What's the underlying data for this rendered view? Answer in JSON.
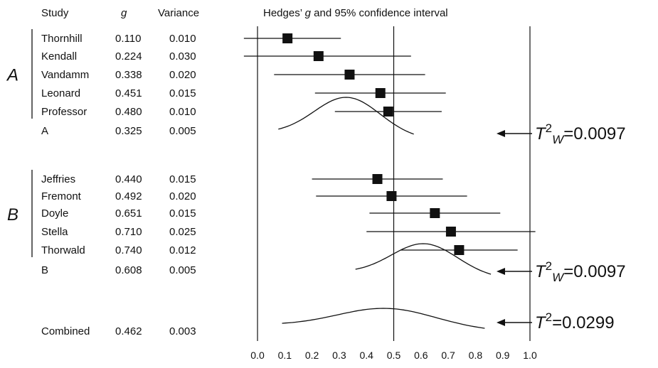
{
  "columns": {
    "study": "Study",
    "g": "g",
    "variance": "Variance",
    "plot_pre": "Hedges’ ",
    "plot_g": "g",
    "plot_post": " and 95% confidence interval"
  },
  "groups": [
    {
      "label": "A",
      "studies": [
        {
          "name": "Thornhill",
          "g": "0.110",
          "var": "0.010"
        },
        {
          "name": "Kendall",
          "g": "0.224",
          "var": "0.030"
        },
        {
          "name": "Vandamm",
          "g": "0.338",
          "var": "0.020"
        },
        {
          "name": "Leonard",
          "g": "0.451",
          "var": "0.015"
        },
        {
          "name": "Professor",
          "g": "0.480",
          "var": "0.010"
        }
      ],
      "summary": {
        "name": "A",
        "g": "0.325",
        "var": "0.005"
      },
      "annotation": {
        "base": "T",
        "sup": "2",
        "sub": "W",
        "eq": "=",
        "value": "0.0097"
      }
    },
    {
      "label": "B",
      "studies": [
        {
          "name": "Jeffries",
          "g": "0.440",
          "var": "0.015"
        },
        {
          "name": "Fremont",
          "g": "0.492",
          "var": "0.020"
        },
        {
          "name": "Doyle",
          "g": "0.651",
          "var": "0.015"
        },
        {
          "name": "Stella",
          "g": "0.710",
          "var": "0.025"
        },
        {
          "name": "Thorwald",
          "g": "0.740",
          "var": "0.012"
        }
      ],
      "summary": {
        "name": "B",
        "g": "0.608",
        "var": "0.005"
      },
      "annotation": {
        "base": "T",
        "sup": "2",
        "sub": "W",
        "eq": "=",
        "value": "0.0097"
      }
    }
  ],
  "combined": {
    "name": "Combined",
    "g": "0.462",
    "var": "0.003",
    "annotation": {
      "base": "T",
      "sup": "2",
      "sub": "",
      "eq": "=",
      "value": "0.0299"
    }
  },
  "chart_data": {
    "type": "scatter",
    "subtype": "forest-plot",
    "xlim": [
      0.0,
      1.0
    ],
    "xticks": [
      "0.0",
      "0.1",
      "0.2",
      "0.3",
      "0.4",
      "0.5",
      "0.6",
      "0.7",
      "0.8",
      "0.9",
      "1.0"
    ],
    "reference_lines": [
      0.0,
      0.5,
      1.0
    ],
    "grid": false,
    "studies": [
      {
        "name": "Thornhill",
        "group": "A",
        "g": 0.11,
        "variance": 0.01
      },
      {
        "name": "Kendall",
        "group": "A",
        "g": 0.224,
        "variance": 0.03
      },
      {
        "name": "Vandamm",
        "group": "A",
        "g": 0.338,
        "variance": 0.02
      },
      {
        "name": "Leonard",
        "group": "A",
        "g": 0.451,
        "variance": 0.015
      },
      {
        "name": "Professor",
        "group": "A",
        "g": 0.48,
        "variance": 0.01
      },
      {
        "name": "Jeffries",
        "group": "B",
        "g": 0.44,
        "variance": 0.015
      },
      {
        "name": "Fremont",
        "group": "B",
        "g": 0.492,
        "variance": 0.02
      },
      {
        "name": "Doyle",
        "group": "B",
        "g": 0.651,
        "variance": 0.015
      },
      {
        "name": "Stella",
        "group": "B",
        "g": 0.71,
        "variance": 0.025
      },
      {
        "name": "Thorwald",
        "group": "B",
        "g": 0.74,
        "variance": 0.012
      }
    ],
    "summaries": [
      {
        "name": "A",
        "g": 0.325,
        "variance": 0.005,
        "tau_squared": 0.0097
      },
      {
        "name": "B",
        "g": 0.608,
        "variance": 0.005,
        "tau_squared": 0.0097
      },
      {
        "name": "Combined",
        "g": 0.462,
        "variance": 0.003,
        "tau_squared": 0.0299
      }
    ]
  }
}
